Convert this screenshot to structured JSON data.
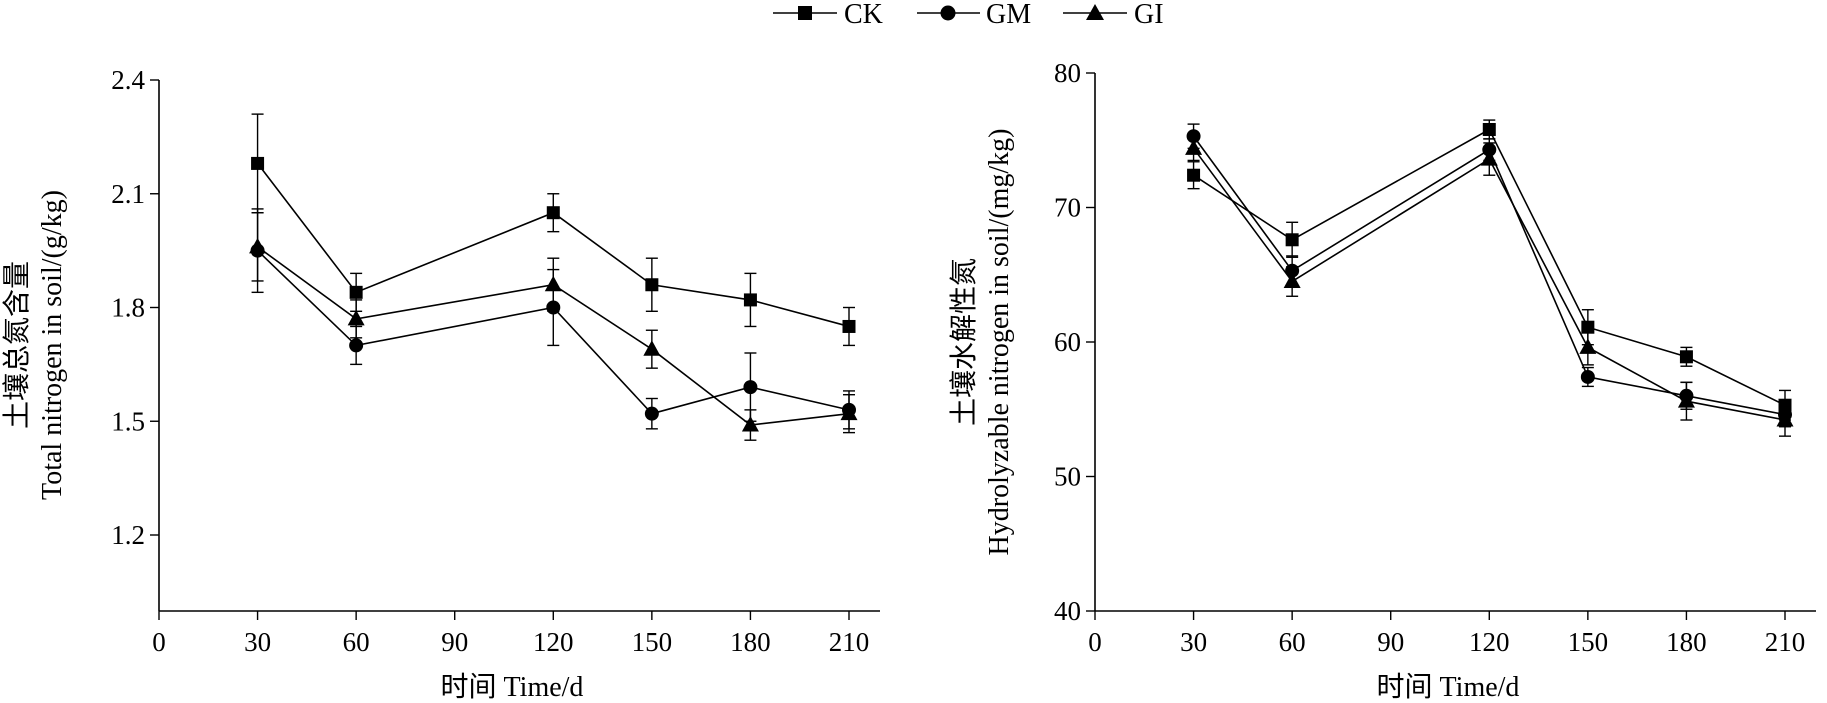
{
  "legend": {
    "entries": [
      {
        "label": "CK",
        "marker": "square"
      },
      {
        "label": "GM",
        "marker": "circle"
      },
      {
        "label": "GI",
        "marker": "triangle"
      }
    ]
  },
  "chart_data": [
    {
      "type": "line",
      "ylabel_cn": "土壤总氮含量",
      "ylabel_en": "Total nitrogen in soil/(g/kg)",
      "xlabel": "时间 Time/d",
      "xlim": [
        0,
        210
      ],
      "xticks": [
        0,
        30,
        60,
        90,
        120,
        150,
        180,
        210
      ],
      "ylim": [
        1.0,
        2.4
      ],
      "yticks": [
        1.2,
        1.5,
        1.8,
        2.1,
        2.4
      ],
      "ytick_labels": [
        "1.2",
        "1.5",
        "1.8",
        "2.1",
        "2.4"
      ],
      "grid": false,
      "x": [
        30,
        60,
        120,
        150,
        180,
        210
      ],
      "series": [
        {
          "name": "CK",
          "marker": "square",
          "values": [
            2.18,
            1.84,
            2.05,
            1.86,
            1.82,
            1.75
          ],
          "errors": [
            0.13,
            0.05,
            0.05,
            0.07,
            0.07,
            0.05
          ]
        },
        {
          "name": "GM",
          "marker": "circle",
          "values": [
            1.95,
            1.7,
            1.8,
            1.52,
            1.59,
            1.53
          ],
          "errors": [
            0.11,
            0.05,
            0.1,
            0.04,
            0.09,
            0.05
          ]
        },
        {
          "name": "GI",
          "marker": "triangle",
          "values": [
            1.96,
            1.77,
            1.86,
            1.69,
            1.49,
            1.52
          ],
          "errors": [
            0.09,
            0.05,
            0.07,
            0.05,
            0.04,
            0.05
          ]
        }
      ]
    },
    {
      "type": "line",
      "ylabel_cn": "土壤水解性氮",
      "ylabel_en": "Hydrolyzable nitrogen in soil/(mg/kg)",
      "xlabel": "时间 Time/d",
      "xlim": [
        0,
        210
      ],
      "xticks": [
        0,
        30,
        60,
        90,
        120,
        150,
        180,
        210
      ],
      "ylim": [
        40,
        80
      ],
      "yticks": [
        40,
        50,
        60,
        70,
        80
      ],
      "ytick_labels": [
        "40",
        "50",
        "60",
        "70",
        "80"
      ],
      "grid": false,
      "x": [
        30,
        60,
        120,
        150,
        180,
        210
      ],
      "series": [
        {
          "name": "CK",
          "marker": "square",
          "values": [
            72.4,
            67.6,
            75.8,
            61.1,
            58.9,
            55.3
          ],
          "errors": [
            1.0,
            1.3,
            0.7,
            1.3,
            0.7,
            1.1
          ]
        },
        {
          "name": "GM",
          "marker": "circle",
          "values": [
            75.3,
            65.3,
            74.3,
            57.4,
            56.0,
            54.6
          ],
          "errors": [
            0.9,
            1.1,
            0.8,
            0.7,
            1.0,
            0.9
          ]
        },
        {
          "name": "GI",
          "marker": "triangle",
          "values": [
            74.4,
            64.5,
            73.6,
            59.6,
            55.6,
            54.2
          ],
          "errors": [
            0.9,
            1.1,
            1.2,
            1.3,
            1.4,
            1.2
          ]
        }
      ]
    }
  ]
}
